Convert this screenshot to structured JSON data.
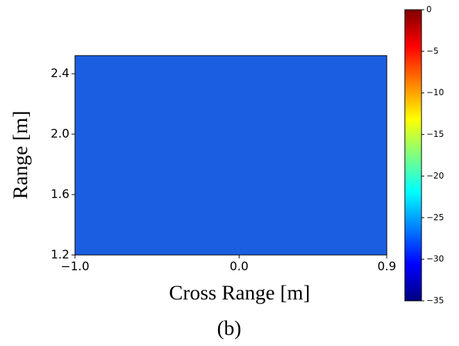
{
  "chart_data": {
    "type": "heatmap",
    "subtitle": "(b)",
    "x_label": "Cross Range [m]",
    "y_label": "Range [m]",
    "xlim": [
      -1.0,
      0.9
    ],
    "ylim": [
      1.2,
      2.52
    ],
    "xticks": [
      {
        "value": -1.0,
        "label": "−1.0"
      },
      {
        "value": 0.0,
        "label": "0.0"
      },
      {
        "value": 0.9,
        "label": "0.9"
      }
    ],
    "yticks": [
      1.2,
      1.6,
      {
        "value": 2.0,
        "label": "2.0"
      },
      2.4
    ],
    "image_color": "#1c5ee0",
    "colormap": [
      "#00007f",
      "#0000ff",
      "#007fff",
      "#00ffff",
      "#7fff7f",
      "#ffff00",
      "#ff7f00",
      "#ff0000",
      "#7f0000"
    ],
    "clim": [
      -35,
      0
    ],
    "cticks": [
      {
        "value": 0,
        "label": "0"
      },
      {
        "value": -5,
        "label": "−5"
      },
      {
        "value": -10,
        "label": "−10"
      },
      {
        "value": -15,
        "label": "−15"
      },
      {
        "value": -20,
        "label": "−20"
      },
      {
        "value": -25,
        "label": "−25"
      },
      {
        "value": -30,
        "label": "−30"
      },
      {
        "value": -35,
        "label": "−35"
      }
    ]
  }
}
